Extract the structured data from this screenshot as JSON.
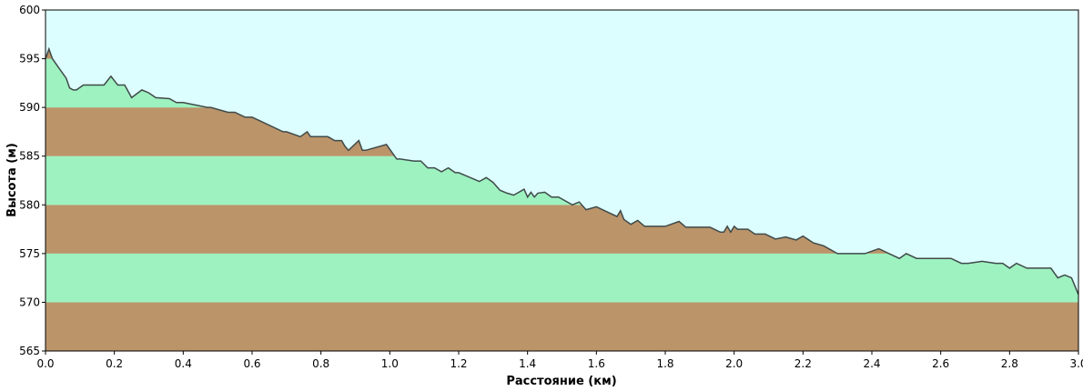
{
  "chart_data": {
    "type": "area",
    "xlabel": "Расстояние  (км)",
    "ylabel": "Высота (м)",
    "xlim": [
      0.0,
      3.0
    ],
    "ylim": [
      565,
      600
    ],
    "x_ticks": [
      "0.0",
      "0.2",
      "0.4",
      "0.6",
      "0.8",
      "1.0",
      "1.2",
      "1.4",
      "1.6",
      "1.8",
      "2.0",
      "2.2",
      "2.4",
      "2.6",
      "2.8",
      "3.0"
    ],
    "y_ticks": [
      "565",
      "570",
      "575",
      "580",
      "585",
      "590",
      "595",
      "600"
    ],
    "band_step": 5,
    "colors": {
      "sky": "#DDFEFE",
      "band_brown": "#BB946A",
      "band_green": "#9EF2C0",
      "profile_line": "#3F4A4A",
      "axis": "#000000"
    },
    "series": [
      {
        "x": [
          0.0,
          0.01,
          0.02,
          0.04,
          0.06,
          0.07,
          0.08,
          0.09,
          0.11,
          0.12,
          0.14,
          0.17,
          0.19,
          0.21,
          0.23,
          0.25,
          0.28,
          0.3,
          0.32,
          0.36,
          0.38,
          0.4,
          0.47,
          0.48,
          0.53,
          0.55,
          0.58,
          0.6,
          0.63,
          0.69,
          0.7,
          0.74,
          0.76,
          0.77,
          0.78,
          0.82,
          0.84,
          0.86,
          0.87,
          0.88,
          0.91,
          0.92,
          0.93,
          0.99,
          1.0,
          1.02,
          1.03,
          1.07,
          1.09,
          1.11,
          1.13,
          1.15,
          1.17,
          1.19,
          1.2,
          1.26,
          1.28,
          1.3,
          1.32,
          1.34,
          1.36,
          1.39,
          1.4,
          1.41,
          1.42,
          1.43,
          1.45,
          1.47,
          1.49,
          1.5,
          1.53,
          1.55,
          1.57,
          1.6,
          1.63,
          1.66,
          1.67,
          1.68,
          1.7,
          1.72,
          1.74,
          1.8,
          1.84,
          1.86,
          1.93,
          1.96,
          1.97,
          1.98,
          1.99,
          2.0,
          2.01,
          2.04,
          2.06,
          2.09,
          2.12,
          2.15,
          2.18,
          2.2,
          2.23,
          2.26,
          2.3,
          2.38,
          2.42,
          2.45,
          2.48,
          2.5,
          2.53,
          2.63,
          2.66,
          2.68,
          2.72,
          2.76,
          2.78,
          2.8,
          2.82,
          2.85,
          2.88,
          2.9,
          2.92,
          2.94,
          2.96,
          2.98,
          3.0
        ],
        "y": [
          595.0,
          596.0,
          595.0,
          594.0,
          593.0,
          592.0,
          591.8,
          591.8,
          592.3,
          592.3,
          592.3,
          592.3,
          593.2,
          592.3,
          592.3,
          591.0,
          591.8,
          591.5,
          591.0,
          590.9,
          590.5,
          590.5,
          590.0,
          590.0,
          589.5,
          589.5,
          589.0,
          589.0,
          588.5,
          587.5,
          587.5,
          587.0,
          587.5,
          587.0,
          587.0,
          587.0,
          586.6,
          586.6,
          586.0,
          585.6,
          586.6,
          585.6,
          585.6,
          586.2,
          585.7,
          584.7,
          584.7,
          584.5,
          584.5,
          583.8,
          583.8,
          583.4,
          583.8,
          583.3,
          583.3,
          582.4,
          582.8,
          582.3,
          581.5,
          581.2,
          581.0,
          581.6,
          580.8,
          581.3,
          580.8,
          581.2,
          581.3,
          580.8,
          580.8,
          580.6,
          580.0,
          580.3,
          579.5,
          579.8,
          579.3,
          578.8,
          579.4,
          578.5,
          578.0,
          578.4,
          577.8,
          577.8,
          578.3,
          577.7,
          577.7,
          577.2,
          577.2,
          577.8,
          577.2,
          577.8,
          577.5,
          577.5,
          577.0,
          577.0,
          576.5,
          576.7,
          576.4,
          576.8,
          576.1,
          575.8,
          575.0,
          575.0,
          575.5,
          575.0,
          574.5,
          575.0,
          574.5,
          574.5,
          574.0,
          574.0,
          574.2,
          574.0,
          574.0,
          573.5,
          574.0,
          573.5,
          573.5,
          573.5,
          573.5,
          572.5,
          572.8,
          572.5,
          570.8
        ]
      }
    ]
  }
}
